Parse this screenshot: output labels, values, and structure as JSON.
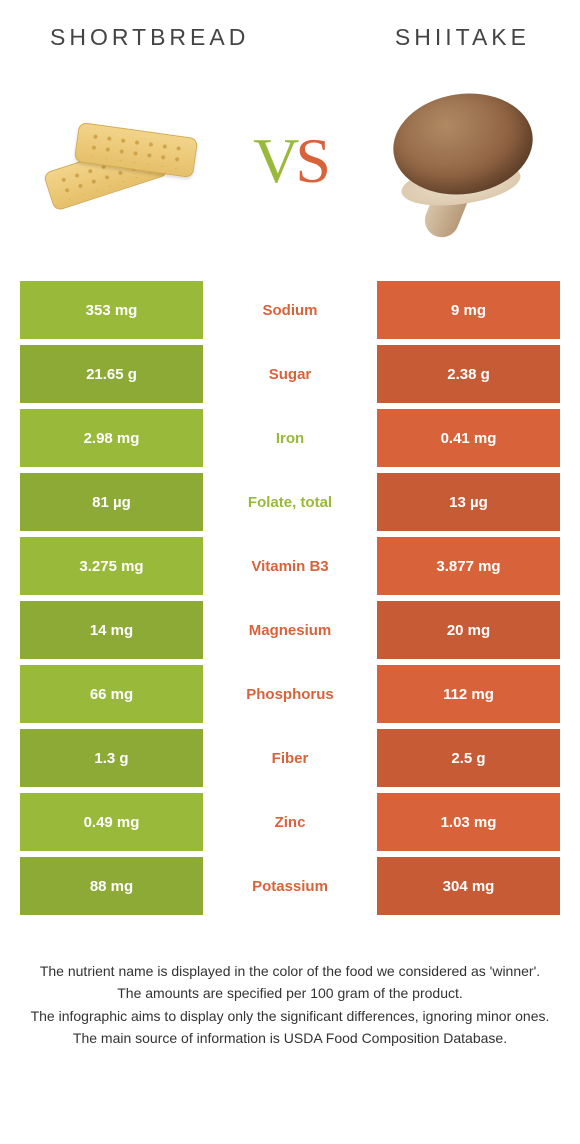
{
  "title_left": "SHORTBREAD",
  "title_right": "SHIITAKE",
  "colors": {
    "green": "#99b93b",
    "orange": "#d8633b",
    "row_alt_darken": 0.92
  },
  "vs": {
    "v": "V",
    "s": "S"
  },
  "nutrients": [
    {
      "name": "Sodium",
      "left": "353 mg",
      "right": "9 mg",
      "winner": "orange"
    },
    {
      "name": "Sugar",
      "left": "21.65 g",
      "right": "2.38 g",
      "winner": "orange"
    },
    {
      "name": "Iron",
      "left": "2.98 mg",
      "right": "0.41 mg",
      "winner": "green"
    },
    {
      "name": "Folate, total",
      "left": "81 µg",
      "right": "13 µg",
      "winner": "green"
    },
    {
      "name": "Vitamin B3",
      "left": "3.275 mg",
      "right": "3.877 mg",
      "winner": "orange"
    },
    {
      "name": "Magnesium",
      "left": "14 mg",
      "right": "20 mg",
      "winner": "orange"
    },
    {
      "name": "Phosphorus",
      "left": "66 mg",
      "right": "112 mg",
      "winner": "orange"
    },
    {
      "name": "Fiber",
      "left": "1.3 g",
      "right": "2.5 g",
      "winner": "orange"
    },
    {
      "name": "Zinc",
      "left": "0.49 mg",
      "right": "1.03 mg",
      "winner": "orange"
    },
    {
      "name": "Potassium",
      "left": "88 mg",
      "right": "304 mg",
      "winner": "orange"
    }
  ],
  "footnotes": [
    "The nutrient name is displayed in the color of the food we considered as 'winner'.",
    "The amounts are specified per 100 gram of the product.",
    "The infographic aims to display only the significant differences, ignoring minor ones.",
    "The main source of information is USDA Food Composition Database."
  ]
}
